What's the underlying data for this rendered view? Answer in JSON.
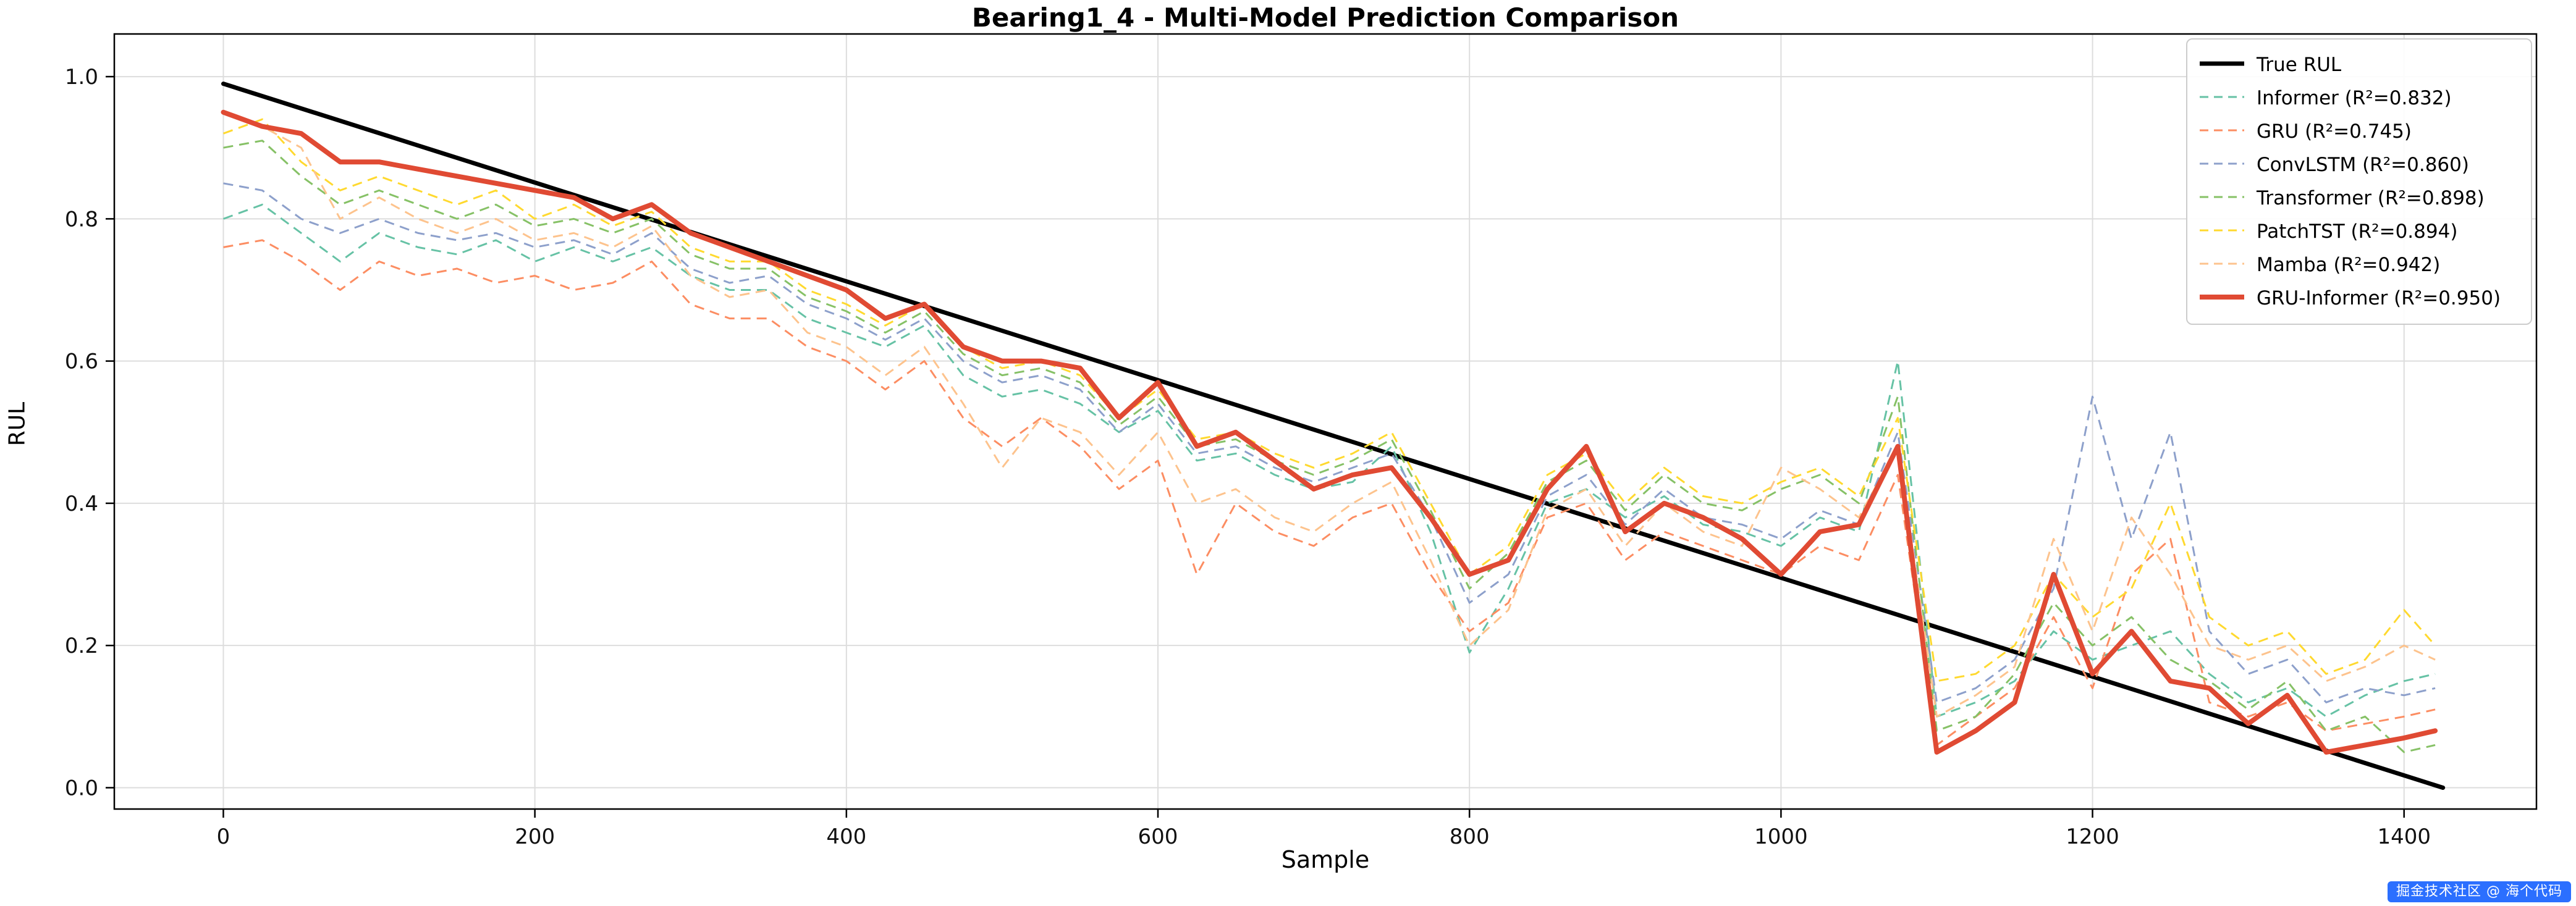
{
  "title": "Bearing1_4 - Multi-Model Prediction Comparison",
  "watermark": "掘金技术社区 @ 海个代码",
  "chart_data": {
    "type": "line",
    "title": "Bearing1_4 - Multi-Model Prediction Comparison",
    "xlabel": "Sample",
    "ylabel": "RUL",
    "xlim": [
      -70,
      1485
    ],
    "ylim": [
      -0.03,
      1.06
    ],
    "xticks": [
      0,
      200,
      400,
      600,
      800,
      1000,
      1200,
      1400
    ],
    "yticks": [
      0.0,
      0.2,
      0.4,
      0.6,
      0.8,
      1.0
    ],
    "grid": true,
    "grid_color": "#dddddd",
    "legend_position": "upper right",
    "x": [
      0,
      25,
      50,
      75,
      100,
      125,
      150,
      175,
      200,
      225,
      250,
      275,
      300,
      325,
      350,
      375,
      400,
      425,
      450,
      475,
      500,
      525,
      550,
      575,
      600,
      625,
      650,
      675,
      700,
      725,
      750,
      775,
      800,
      825,
      850,
      875,
      900,
      925,
      950,
      975,
      1000,
      1025,
      1050,
      1075,
      1100,
      1125,
      1150,
      1175,
      1200,
      1225,
      1250,
      1275,
      1300,
      1325,
      1350,
      1375,
      1400,
      1420
    ],
    "series": [
      {
        "name": "True RUL",
        "color": "#000000",
        "dash": false,
        "width": 7,
        "x": [
          0,
          1425
        ],
        "values": [
          0.99,
          0.0
        ]
      },
      {
        "name": "Informer (R²=0.832)",
        "color": "#66c2a5",
        "dash": true,
        "width": 3,
        "values": [
          0.8,
          0.82,
          0.78,
          0.74,
          0.78,
          0.76,
          0.75,
          0.77,
          0.74,
          0.76,
          0.74,
          0.76,
          0.72,
          0.7,
          0.7,
          0.66,
          0.64,
          0.62,
          0.65,
          0.58,
          0.55,
          0.56,
          0.54,
          0.5,
          0.53,
          0.46,
          0.47,
          0.44,
          0.42,
          0.43,
          0.48,
          0.36,
          0.19,
          0.28,
          0.4,
          0.42,
          0.38,
          0.41,
          0.37,
          0.36,
          0.34,
          0.38,
          0.36,
          0.6,
          0.1,
          0.12,
          0.15,
          0.22,
          0.18,
          0.2,
          0.22,
          0.16,
          0.12,
          0.14,
          0.1,
          0.13,
          0.15,
          0.16
        ]
      },
      {
        "name": "GRU (R²=0.745)",
        "color": "#fc8d62",
        "dash": true,
        "width": 3,
        "values": [
          0.76,
          0.77,
          0.74,
          0.7,
          0.74,
          0.72,
          0.73,
          0.71,
          0.72,
          0.7,
          0.71,
          0.74,
          0.68,
          0.66,
          0.66,
          0.62,
          0.6,
          0.56,
          0.6,
          0.52,
          0.48,
          0.52,
          0.48,
          0.42,
          0.46,
          0.3,
          0.4,
          0.36,
          0.34,
          0.38,
          0.4,
          0.3,
          0.22,
          0.26,
          0.38,
          0.4,
          0.32,
          0.36,
          0.34,
          0.32,
          0.3,
          0.34,
          0.32,
          0.44,
          0.06,
          0.1,
          0.14,
          0.24,
          0.14,
          0.3,
          0.35,
          0.12,
          0.1,
          0.12,
          0.08,
          0.09,
          0.1,
          0.11
        ]
      },
      {
        "name": "ConvLSTM (R²=0.860)",
        "color": "#8da0cb",
        "dash": true,
        "width": 3,
        "values": [
          0.85,
          0.84,
          0.8,
          0.78,
          0.8,
          0.78,
          0.77,
          0.78,
          0.76,
          0.77,
          0.75,
          0.78,
          0.73,
          0.71,
          0.72,
          0.68,
          0.66,
          0.63,
          0.66,
          0.6,
          0.57,
          0.58,
          0.56,
          0.5,
          0.54,
          0.47,
          0.48,
          0.45,
          0.43,
          0.45,
          0.47,
          0.38,
          0.26,
          0.3,
          0.41,
          0.44,
          0.37,
          0.42,
          0.38,
          0.37,
          0.35,
          0.39,
          0.37,
          0.5,
          0.12,
          0.14,
          0.18,
          0.28,
          0.55,
          0.35,
          0.5,
          0.22,
          0.16,
          0.18,
          0.12,
          0.14,
          0.13,
          0.14
        ]
      },
      {
        "name": "Transformer (R²=0.898)",
        "color": "#86c166",
        "dash": true,
        "width": 3,
        "values": [
          0.9,
          0.91,
          0.86,
          0.82,
          0.84,
          0.82,
          0.8,
          0.82,
          0.79,
          0.8,
          0.78,
          0.8,
          0.75,
          0.73,
          0.73,
          0.69,
          0.67,
          0.64,
          0.67,
          0.61,
          0.58,
          0.59,
          0.57,
          0.51,
          0.55,
          0.48,
          0.49,
          0.46,
          0.44,
          0.46,
          0.49,
          0.39,
          0.28,
          0.33,
          0.43,
          0.46,
          0.39,
          0.44,
          0.4,
          0.39,
          0.42,
          0.44,
          0.4,
          0.55,
          0.08,
          0.1,
          0.16,
          0.26,
          0.2,
          0.24,
          0.18,
          0.15,
          0.11,
          0.15,
          0.08,
          0.1,
          0.05,
          0.06
        ]
      },
      {
        "name": "PatchTST (R²=0.894)",
        "color": "#ffd92f",
        "dash": true,
        "width": 3,
        "values": [
          0.92,
          0.94,
          0.88,
          0.84,
          0.86,
          0.84,
          0.82,
          0.84,
          0.8,
          0.82,
          0.79,
          0.81,
          0.76,
          0.74,
          0.74,
          0.7,
          0.68,
          0.65,
          0.68,
          0.62,
          0.59,
          0.6,
          0.58,
          0.52,
          0.56,
          0.49,
          0.5,
          0.47,
          0.45,
          0.47,
          0.5,
          0.4,
          0.3,
          0.34,
          0.44,
          0.47,
          0.4,
          0.45,
          0.41,
          0.4,
          0.43,
          0.45,
          0.41,
          0.52,
          0.15,
          0.16,
          0.2,
          0.3,
          0.24,
          0.28,
          0.4,
          0.24,
          0.2,
          0.22,
          0.16,
          0.18,
          0.25,
          0.2
        ]
      },
      {
        "name": "Mamba (R²=0.942)",
        "color": "#fdc38d",
        "dash": true,
        "width": 3,
        "values": [
          0.95,
          0.93,
          0.9,
          0.8,
          0.83,
          0.8,
          0.78,
          0.8,
          0.77,
          0.78,
          0.76,
          0.79,
          0.72,
          0.69,
          0.7,
          0.64,
          0.62,
          0.58,
          0.62,
          0.54,
          0.45,
          0.52,
          0.5,
          0.44,
          0.5,
          0.4,
          0.42,
          0.38,
          0.36,
          0.4,
          0.43,
          0.32,
          0.2,
          0.25,
          0.39,
          0.42,
          0.34,
          0.4,
          0.36,
          0.34,
          0.45,
          0.42,
          0.38,
          0.48,
          0.1,
          0.13,
          0.17,
          0.35,
          0.22,
          0.38,
          0.3,
          0.2,
          0.18,
          0.2,
          0.15,
          0.17,
          0.2,
          0.18
        ]
      },
      {
        "name": "GRU-Informer (R²=0.950)",
        "color": "#e04a33",
        "dash": false,
        "width": 8,
        "values": [
          0.95,
          0.93,
          0.92,
          0.88,
          0.88,
          0.87,
          0.86,
          0.85,
          0.84,
          0.83,
          0.8,
          0.82,
          0.78,
          0.76,
          0.74,
          0.72,
          0.7,
          0.66,
          0.68,
          0.62,
          0.6,
          0.6,
          0.59,
          0.52,
          0.57,
          0.48,
          0.5,
          0.46,
          0.42,
          0.44,
          0.45,
          0.38,
          0.3,
          0.32,
          0.42,
          0.48,
          0.36,
          0.4,
          0.38,
          0.35,
          0.3,
          0.36,
          0.37,
          0.48,
          0.05,
          0.08,
          0.12,
          0.3,
          0.16,
          0.22,
          0.15,
          0.14,
          0.09,
          0.13,
          0.05,
          0.06,
          0.07,
          0.08
        ]
      }
    ]
  }
}
